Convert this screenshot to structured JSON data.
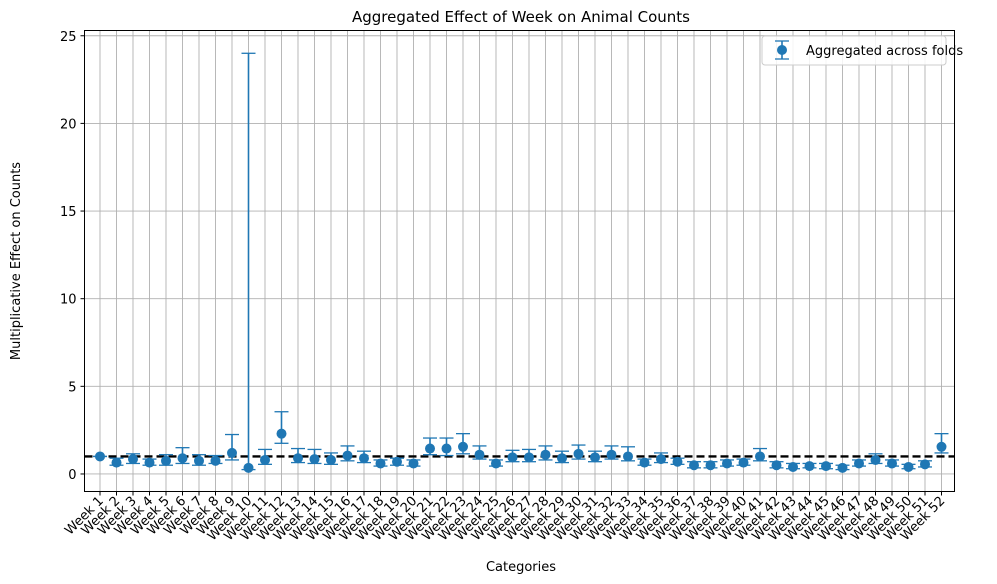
{
  "chart_data": {
    "type": "scatter",
    "title": "Aggregated Effect of Week on Animal Counts",
    "xlabel": "Categories",
    "ylabel": "Multiplicative Effect on Counts",
    "ylim": [
      -1,
      25.3
    ],
    "yticks": [
      0,
      5,
      10,
      15,
      20,
      25
    ],
    "grid": true,
    "legend_position": "top-right",
    "reference_line": 1.0,
    "categories": [
      "Week 1",
      "Week 2",
      "Week 3",
      "Week 4",
      "Week 5",
      "Week 6",
      "Week 7",
      "Week 8",
      "Week 9",
      "Week 10",
      "Week 11",
      "Week 12",
      "Week 13",
      "Week 14",
      "Week 15",
      "Week 16",
      "Week 17",
      "Week 18",
      "Week 19",
      "Week 20",
      "Week 21",
      "Week 22",
      "Week 23",
      "Week 24",
      "Week 25",
      "Week 26",
      "Week 27",
      "Week 28",
      "Week 29",
      "Week 30",
      "Week 31",
      "Week 32",
      "Week 33",
      "Week 34",
      "Week 35",
      "Week 36",
      "Week 37",
      "Week 38",
      "Week 39",
      "Week 40",
      "Week 41",
      "Week 42",
      "Week 43",
      "Week 44",
      "Week 45",
      "Week 46",
      "Week 47",
      "Week 48",
      "Week 49",
      "Week 50",
      "Week 51",
      "Week 52"
    ],
    "series": [
      {
        "name": "Aggregated across folds",
        "color": "#1f77b4",
        "values": [
          1.0,
          0.65,
          0.85,
          0.65,
          0.75,
          0.9,
          0.75,
          0.75,
          1.2,
          0.35,
          0.8,
          2.3,
          0.9,
          0.85,
          0.8,
          1.05,
          0.9,
          0.6,
          0.7,
          0.6,
          1.45,
          1.45,
          1.55,
          1.1,
          0.6,
          0.95,
          0.95,
          1.1,
          0.9,
          1.15,
          0.95,
          1.1,
          1.0,
          0.65,
          0.85,
          0.7,
          0.5,
          0.5,
          0.6,
          0.65,
          1.0,
          0.5,
          0.4,
          0.45,
          0.45,
          0.35,
          0.6,
          0.8,
          0.6,
          0.4,
          0.55,
          1.55
        ],
        "lower": [
          1.0,
          0.5,
          0.6,
          0.5,
          0.5,
          0.6,
          0.5,
          0.6,
          0.8,
          0.25,
          0.55,
          1.75,
          0.65,
          0.6,
          0.55,
          0.75,
          0.65,
          0.45,
          0.5,
          0.45,
          1.1,
          1.05,
          1.15,
          0.85,
          0.45,
          0.7,
          0.7,
          0.8,
          0.65,
          0.85,
          0.7,
          0.85,
          0.75,
          0.5,
          0.65,
          0.55,
          0.35,
          0.35,
          0.45,
          0.5,
          0.75,
          0.35,
          0.3,
          0.35,
          0.3,
          0.25,
          0.45,
          0.6,
          0.45,
          0.3,
          0.4,
          1.2
        ],
        "upper": [
          1.0,
          0.9,
          1.15,
          0.85,
          1.1,
          1.5,
          1.1,
          1.05,
          2.25,
          24.0,
          1.4,
          3.55,
          1.45,
          1.4,
          1.2,
          1.6,
          1.3,
          0.8,
          0.9,
          0.8,
          2.05,
          2.05,
          2.3,
          1.6,
          0.8,
          1.35,
          1.4,
          1.6,
          1.3,
          1.65,
          1.3,
          1.6,
          1.55,
          0.85,
          1.2,
          0.9,
          0.7,
          0.7,
          0.8,
          0.85,
          1.45,
          0.7,
          0.6,
          0.6,
          0.6,
          0.5,
          0.8,
          1.15,
          0.8,
          0.55,
          0.75,
          2.3
        ]
      }
    ]
  }
}
